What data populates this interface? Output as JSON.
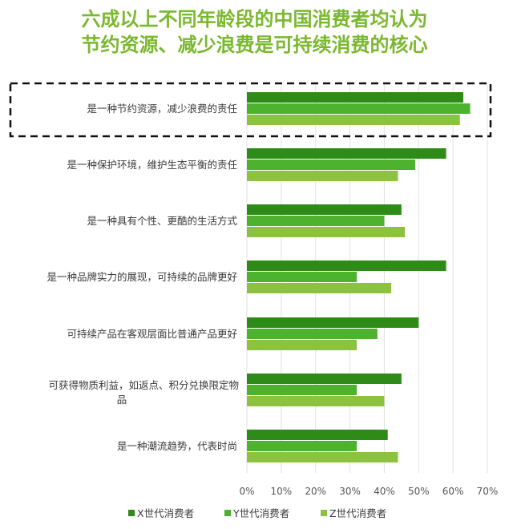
{
  "title": {
    "line1": "六成以上不同年龄段的中国消费者均认为",
    "line2": "节约资源、减少浪费是可持续消费的核心",
    "color": "#7AB82E"
  },
  "chart_data": {
    "type": "bar",
    "orientation": "horizontal",
    "categories": [
      "是一种节约资源，减少浪费的责任",
      "是一种保护环境，维护生态平衡的责任",
      "是一种具有个性、更酷的生活方式",
      "是一种品牌实力的展现，可持续的品牌更好",
      "可持续产品在客观层面比普通产品更好",
      "可获得物质利益，如返点、积分兑换限定物品",
      "是一种潮流趋势，代表时尚"
    ],
    "series": [
      {
        "name": "X世代消费者",
        "color": "#2E8B17",
        "values": [
          63,
          58,
          45,
          58,
          50,
          45,
          41
        ]
      },
      {
        "name": "Y世代消费者",
        "color": "#4DB32F",
        "values": [
          65,
          49,
          40,
          32,
          38,
          32,
          32
        ]
      },
      {
        "name": "Z世代消费者",
        "color": "#8CC23F",
        "values": [
          62,
          44,
          46,
          42,
          32,
          40,
          44
        ]
      }
    ],
    "xlim": [
      0,
      70
    ],
    "xticks": [
      "0%",
      "10%",
      "20%",
      "30%",
      "40%",
      "50%",
      "60%",
      "70%"
    ],
    "grid": true,
    "legend_position": "bottom",
    "highlighted_category": "是一种节约资源，减少浪费的责任"
  }
}
